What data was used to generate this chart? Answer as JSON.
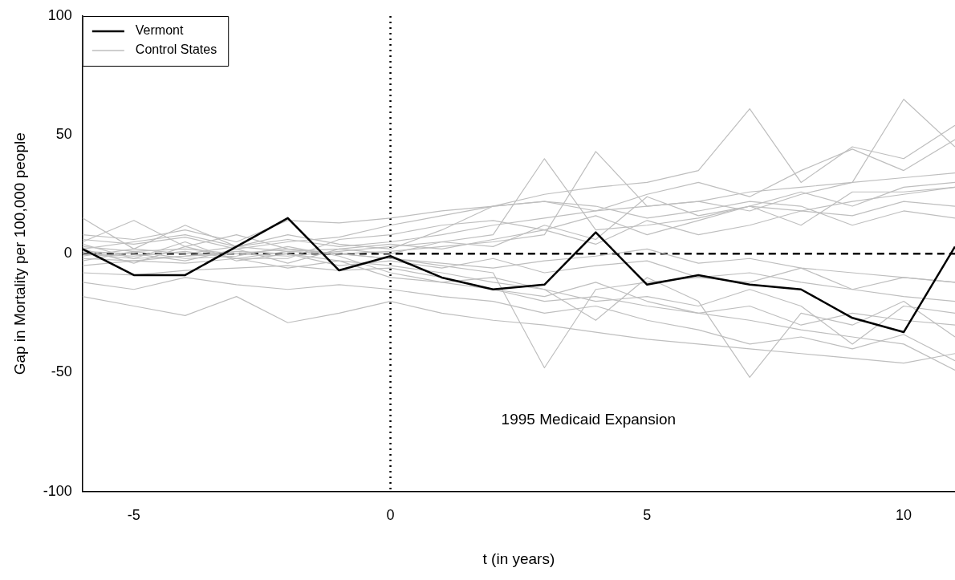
{
  "chart_data": {
    "type": "line",
    "xlabel": "t (in years)",
    "ylabel": "Gap in Mortality per 100,000 people",
    "x": [
      -6,
      -5,
      -4,
      -3,
      -2,
      -1,
      0,
      1,
      2,
      3,
      4,
      5,
      6,
      7,
      8,
      9,
      10,
      11
    ],
    "xlim": [
      -6,
      11
    ],
    "xticks": [
      -5,
      0,
      5,
      10
    ],
    "ylim": [
      -100,
      100
    ],
    "yticks": [
      -100,
      -50,
      0,
      50,
      100
    ],
    "grid": false,
    "legend": "top left",
    "marker": "none",
    "ref_lines": [
      {
        "axis": "y",
        "value": 0,
        "label": null,
        "color": "#000000",
        "line_style": "dashed"
      },
      {
        "axis": "x",
        "value": 0,
        "label": null,
        "color": "#000000",
        "line_style": "dotted"
      }
    ],
    "annotations": [
      "1995 Medicaid Expansion"
    ],
    "series": [
      {
        "name": "Vermont",
        "color": "#000000",
        "values": [
          2,
          -9,
          -9,
          3,
          15,
          -7,
          -1,
          -10,
          -15,
          -13,
          9,
          -13,
          -9,
          -13,
          -15,
          -27,
          -33,
          3
        ]
      },
      {
        "name": "Control States",
        "color": "#bebebe",
        "values": [
          3,
          1,
          2,
          0,
          -1,
          1,
          3,
          5,
          8,
          40,
          10,
          12,
          15,
          20,
          18,
          22,
          25,
          28
        ]
      },
      {
        "color": "#bebebe",
        "values": [
          -2,
          -3,
          -1,
          0,
          2,
          0,
          -2,
          -5,
          -8,
          -48,
          -15,
          -12,
          -10,
          -8,
          -12,
          -15,
          -10,
          -12
        ]
      },
      {
        "color": "#bebebe",
        "values": [
          5,
          14,
          3,
          8,
          2,
          0,
          1,
          3,
          5,
          8,
          43,
          20,
          22,
          18,
          25,
          30,
          65,
          45
        ]
      },
      {
        "color": "#bebebe",
        "values": [
          0,
          -2,
          -1,
          1,
          0,
          -3,
          -5,
          -8,
          -12,
          -15,
          -28,
          -10,
          -20,
          -52,
          -25,
          -30,
          -20,
          -35
        ]
      },
      {
        "color": "#bebebe",
        "values": [
          15,
          2,
          12,
          3,
          8,
          4,
          2,
          10,
          20,
          25,
          28,
          30,
          35,
          61,
          30,
          45,
          40,
          54
        ]
      },
      {
        "color": "#bebebe",
        "values": [
          -18,
          -22,
          -26,
          -18,
          -29,
          -25,
          -20,
          -25,
          -28,
          -30,
          -33,
          -36,
          -38,
          -40,
          -42,
          -44,
          -46,
          -42
        ]
      },
      {
        "color": "#bebebe",
        "values": [
          -8,
          -9,
          -7,
          -6,
          -5,
          -7,
          -6,
          -10,
          -15,
          -20,
          -18,
          -22,
          -25,
          -28,
          -32,
          -35,
          -38,
          -49
        ]
      },
      {
        "color": "#bebebe",
        "values": [
          6,
          4,
          7,
          2,
          5,
          7,
          12,
          16,
          20,
          22,
          18,
          25,
          30,
          24,
          35,
          44,
          35,
          48
        ]
      },
      {
        "color": "#bebebe",
        "values": [
          -5,
          -3,
          -4,
          -2,
          -6,
          -3,
          -10,
          -12,
          -15,
          -18,
          -12,
          -20,
          -25,
          -22,
          -30,
          -25,
          -28,
          -30
        ]
      },
      {
        "color": "#bebebe",
        "values": [
          2,
          5,
          8,
          3,
          6,
          3,
          5,
          8,
          12,
          15,
          18,
          20,
          22,
          26,
          28,
          30,
          32,
          34
        ]
      },
      {
        "color": "#bebebe",
        "values": [
          -12,
          -15,
          -10,
          -13,
          -15,
          -13,
          -15,
          -18,
          -20,
          -25,
          -22,
          -28,
          -32,
          -38,
          -35,
          -40,
          -34,
          -45
        ]
      },
      {
        "color": "#bebebe",
        "values": [
          8,
          6,
          10,
          5,
          14,
          13,
          15,
          18,
          20,
          22,
          20,
          15,
          18,
          22,
          20,
          12,
          18,
          15
        ]
      },
      {
        "color": "#bebebe",
        "values": [
          0,
          -1,
          1,
          -2,
          1,
          0,
          -2,
          -4,
          -6,
          -3,
          -1,
          2,
          -4,
          -2,
          -6,
          -8,
          -10,
          -12
        ]
      },
      {
        "color": "#bebebe",
        "values": [
          -1,
          2,
          0,
          3,
          1,
          2,
          4,
          2,
          6,
          10,
          4,
          14,
          8,
          12,
          18,
          16,
          22,
          20
        ]
      },
      {
        "color": "#bebebe",
        "values": [
          4,
          -2,
          5,
          -3,
          0,
          -5,
          -3,
          -6,
          -2,
          -8,
          -5,
          -3,
          -10,
          -12,
          -6,
          -15,
          -18,
          -20
        ]
      },
      {
        "color": "#bebebe",
        "values": [
          1,
          0,
          -3,
          2,
          -4,
          2,
          0,
          5,
          3,
          12,
          6,
          24,
          16,
          20,
          12,
          26,
          26,
          28
        ]
      },
      {
        "color": "#bebebe",
        "values": [
          -3,
          1,
          -2,
          -1,
          3,
          -1,
          -8,
          -12,
          -10,
          -15,
          -20,
          -18,
          -22,
          -15,
          -22,
          -38,
          -22,
          -25
        ]
      },
      {
        "color": "#bebebe",
        "values": [
          2,
          -4,
          3,
          -2,
          -2,
          6,
          8,
          12,
          14,
          10,
          16,
          8,
          14,
          20,
          26,
          20,
          28,
          30
        ]
      }
    ]
  }
}
